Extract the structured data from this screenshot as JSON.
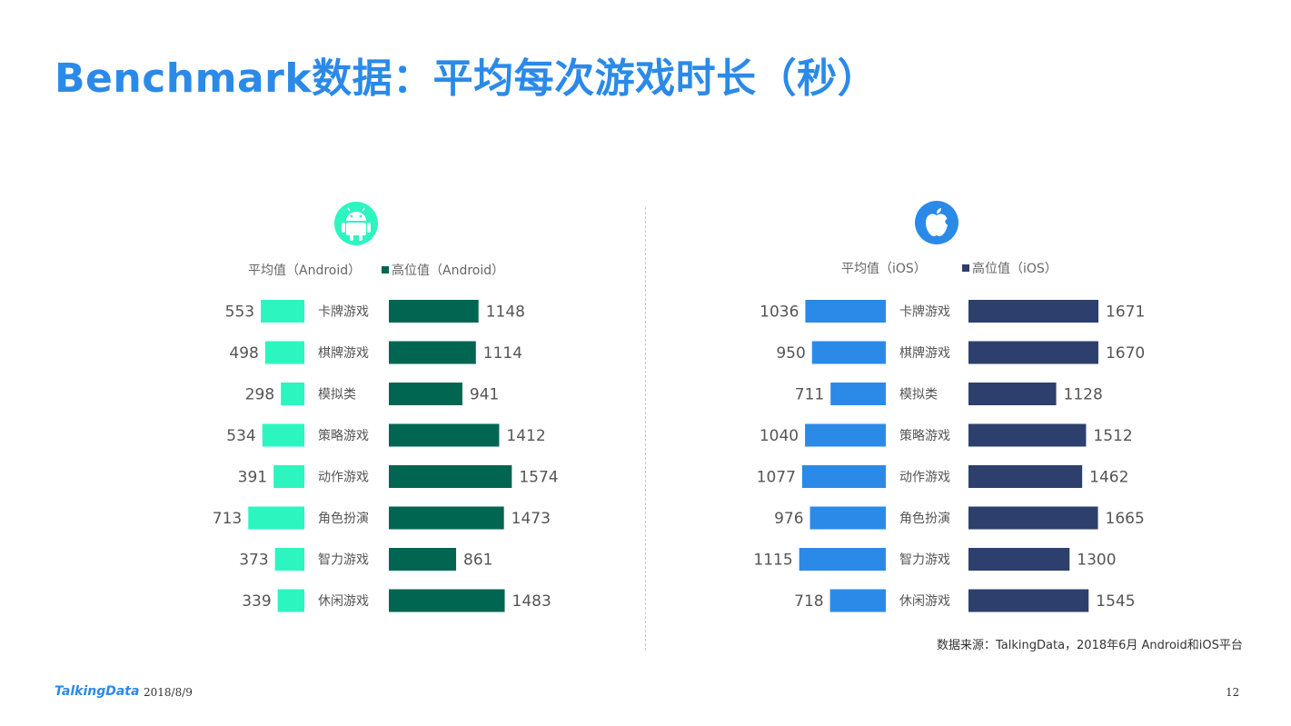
{
  "title": "Benchmark数据：平均每次游戏时长（秒）",
  "source_note": "数据来源：TalkingData，2018年6月 Android和iOS平台",
  "footer": {
    "brand": "TalkingData",
    "date": "2018/8/9",
    "page": "12"
  },
  "icons": {
    "android": "android-icon",
    "ios": "apple-icon"
  },
  "colors": {
    "android_avg": "#2cf5c0",
    "android_high": "#006652",
    "ios_avg": "#2b8ae8",
    "ios_high": "#2d3f6c",
    "title": "#2b8ae8"
  },
  "chart_data": [
    {
      "type": "bar",
      "platform": "Android",
      "categories": [
        "卡牌游戏",
        "棋牌游戏",
        "模拟类",
        "策略游戏",
        "动作游戏",
        "角色扮演",
        "智力游戏",
        "休闲游戏"
      ],
      "series": [
        {
          "name": "平均值（Android）",
          "legend_label": "平均值（Android）",
          "values": [
            553,
            498,
            298,
            534,
            391,
            713,
            373,
            339
          ]
        },
        {
          "name": "高位值（Android）",
          "legend_label": "高位值（Android）",
          "values": [
            1148,
            1114,
            941,
            1412,
            1574,
            1473,
            861,
            1483
          ]
        }
      ],
      "legend": "top"
    },
    {
      "type": "bar",
      "platform": "iOS",
      "categories": [
        "卡牌游戏",
        "棋牌游戏",
        "模拟类",
        "策略游戏",
        "动作游戏",
        "角色扮演",
        "智力游戏",
        "休闲游戏"
      ],
      "series": [
        {
          "name": "平均值（iOS）",
          "legend_label": "平均值（iOS）",
          "values": [
            1036,
            950,
            711,
            1040,
            1077,
            976,
            1115,
            718
          ]
        },
        {
          "name": "高位值（iOS）",
          "legend_label": "高位值（iOS）",
          "values": [
            1671,
            1670,
            1128,
            1512,
            1462,
            1665,
            1300,
            1545
          ]
        }
      ],
      "legend": "top"
    }
  ]
}
